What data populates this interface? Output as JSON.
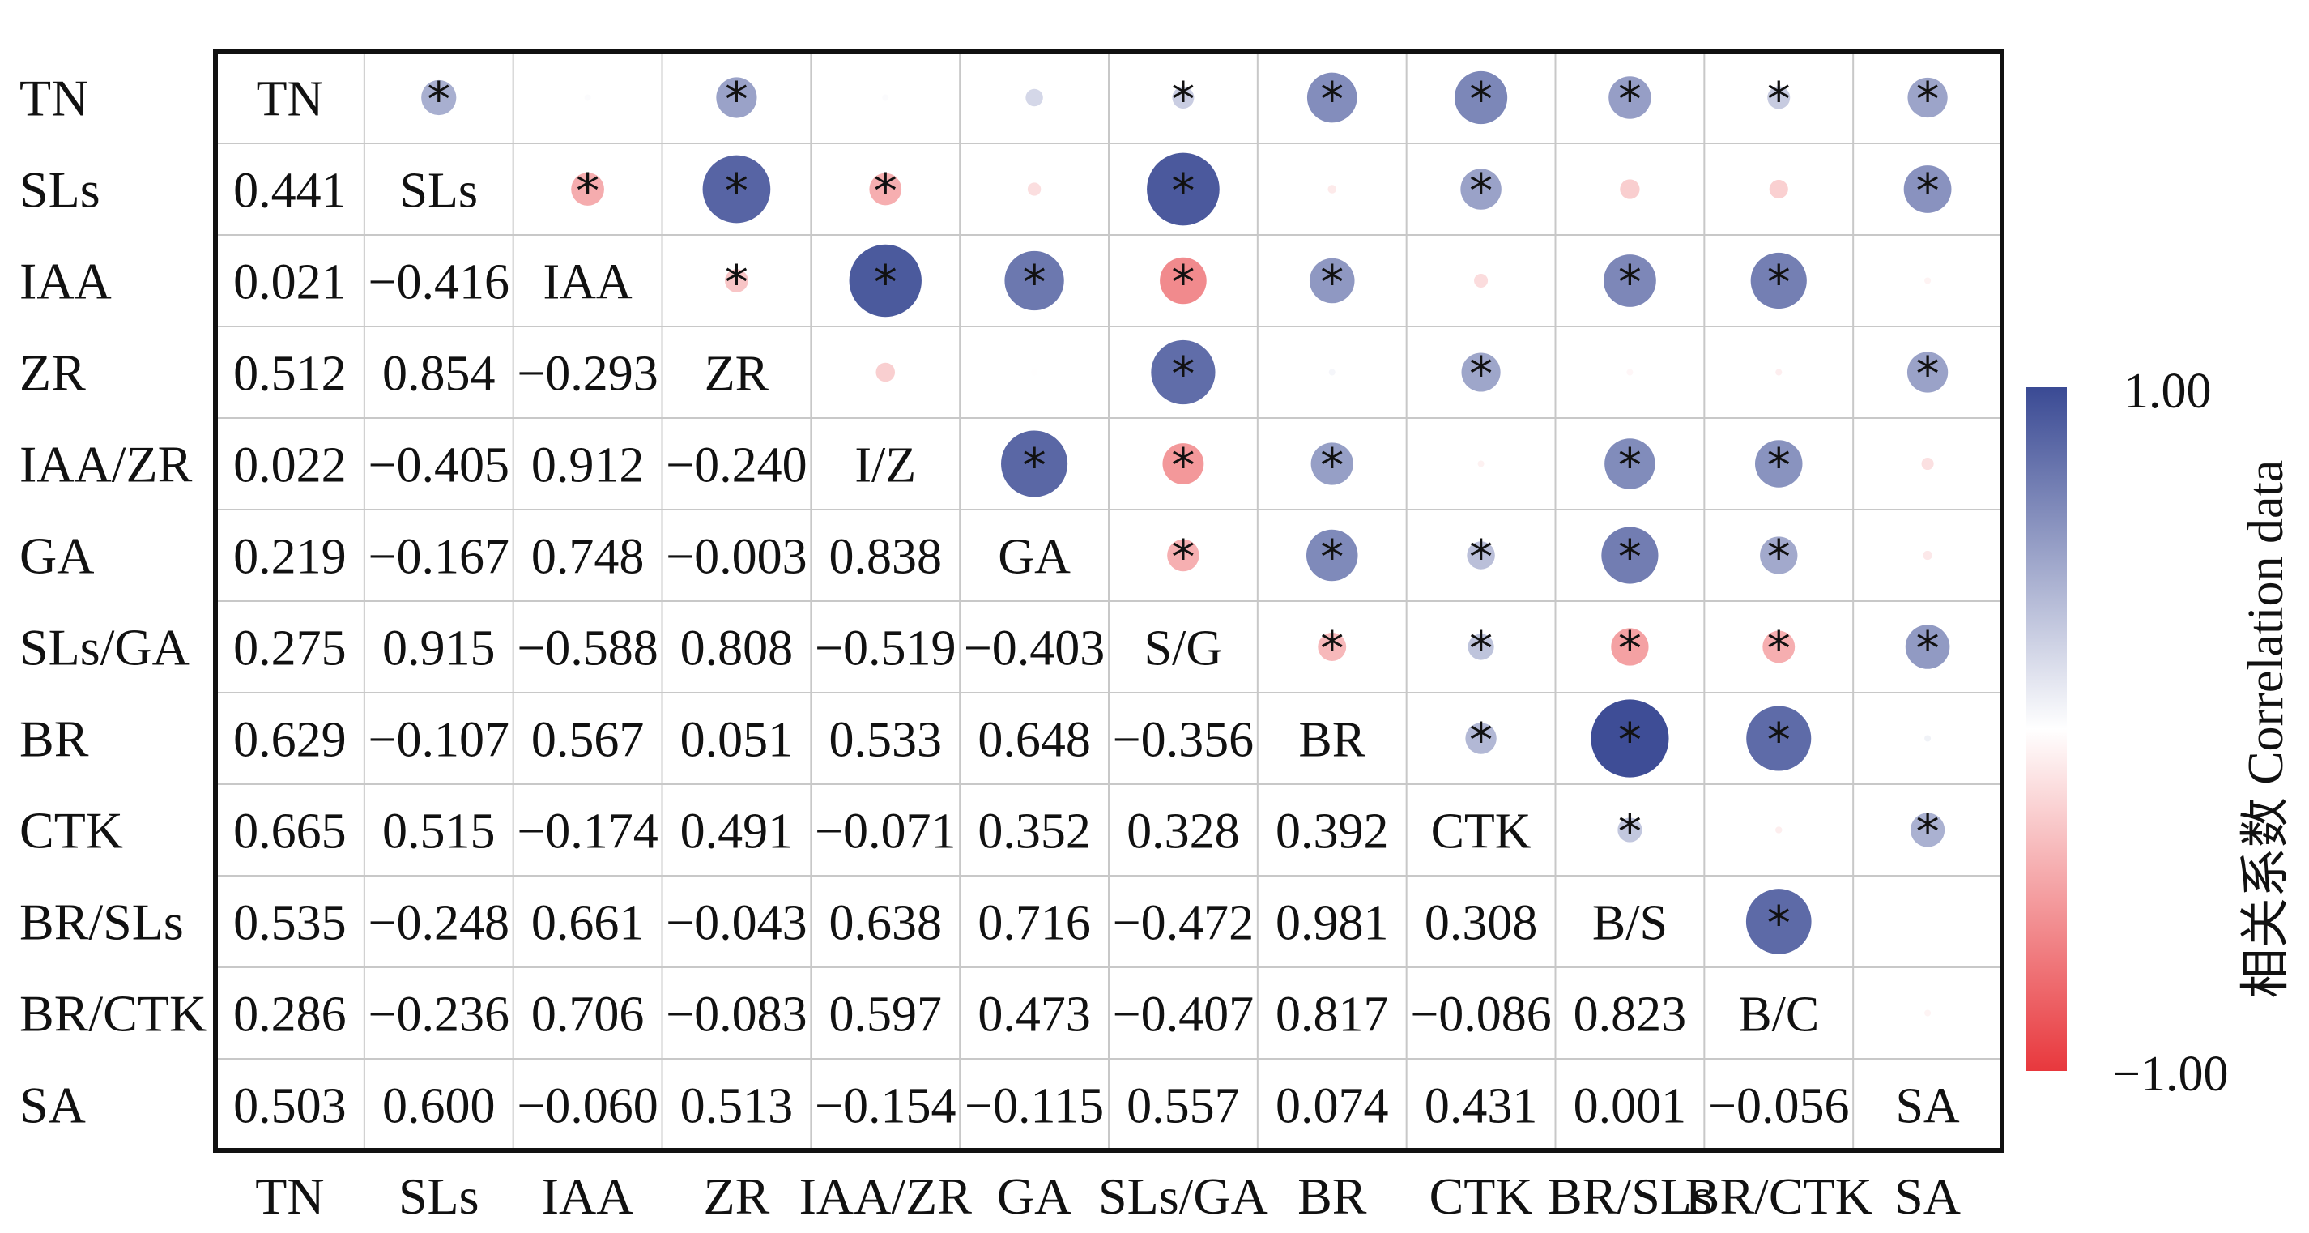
{
  "chart_data": {
    "type": "heatmap",
    "variables": [
      "TN",
      "SLs",
      "IAA",
      "ZR",
      "IAA/ZR",
      "GA",
      "SLs/GA",
      "BR",
      "CTK",
      "BR/SLs",
      "BR/CTK",
      "SA"
    ],
    "diagonal_labels": [
      "TN",
      "SLs",
      "IAA",
      "ZR",
      "I/Z",
      "GA",
      "S/G",
      "BR",
      "CTK",
      "B/S",
      "B/C",
      "SA"
    ],
    "lower_triangle_text": [
      [],
      [
        "0.441"
      ],
      [
        "0.021",
        "−0.416"
      ],
      [
        "0.512",
        "0.854",
        "−0.293"
      ],
      [
        "0.022",
        "−0.405",
        "0.912",
        "−0.240"
      ],
      [
        "0.219",
        "−0.167",
        "0.748",
        "−0.003",
        "0.838"
      ],
      [
        "0.275",
        "0.915",
        "−0.588",
        "0.808",
        "−0.519",
        "−0.403"
      ],
      [
        "0.629",
        "−0.107",
        "0.567",
        "0.051",
        "0.533",
        "0.648",
        "−0.356"
      ],
      [
        "0.665",
        "0.515",
        "−0.174",
        "0.491",
        "−0.071",
        "0.352",
        "0.328",
        "0.392"
      ],
      [
        "0.535",
        "−0.248",
        "0.661",
        "−0.043",
        "0.638",
        "0.716",
        "−0.472",
        "0.981",
        "0.308"
      ],
      [
        "0.286",
        "−0.236",
        "0.706",
        "−0.083",
        "0.597",
        "0.473",
        "−0.407",
        "0.817",
        "−0.086",
        "0.823"
      ],
      [
        "0.503",
        "0.600",
        "−0.060",
        "0.513",
        "−0.154",
        "−0.115",
        "0.557",
        "0.074",
        "0.431",
        "0.001",
        "−0.056"
      ]
    ],
    "correlation_values": [
      [
        1,
        0.441,
        0.021,
        0.512,
        0.022,
        0.219,
        0.275,
        0.629,
        0.665,
        0.535,
        0.286,
        0.503
      ],
      [
        0.441,
        1,
        -0.416,
        0.854,
        -0.405,
        -0.167,
        0.915,
        -0.107,
        0.515,
        -0.248,
        -0.236,
        0.6
      ],
      [
        0.021,
        -0.416,
        1,
        -0.293,
        0.912,
        0.748,
        -0.588,
        0.567,
        -0.174,
        0.661,
        0.706,
        -0.06
      ],
      [
        0.512,
        0.854,
        -0.293,
        1,
        -0.24,
        -0.003,
        0.808,
        0.051,
        0.491,
        -0.043,
        -0.083,
        0.513
      ],
      [
        0.022,
        -0.405,
        0.912,
        -0.24,
        1,
        0.838,
        -0.519,
        0.533,
        -0.071,
        0.638,
        0.597,
        -0.154
      ],
      [
        0.219,
        -0.167,
        0.748,
        -0.003,
        0.838,
        1,
        -0.403,
        0.648,
        0.352,
        0.716,
        0.473,
        -0.115
      ],
      [
        0.275,
        0.915,
        -0.588,
        0.808,
        -0.519,
        -0.403,
        1,
        -0.356,
        0.328,
        -0.472,
        -0.407,
        0.557
      ],
      [
        0.629,
        -0.107,
        0.567,
        0.051,
        0.533,
        0.648,
        -0.356,
        1,
        0.392,
        0.981,
        0.817,
        0.074
      ],
      [
        0.665,
        0.515,
        -0.174,
        0.491,
        -0.071,
        0.352,
        0.328,
        0.392,
        1,
        0.308,
        -0.086,
        0.431
      ],
      [
        0.535,
        -0.248,
        0.661,
        -0.043,
        0.638,
        0.716,
        -0.472,
        0.981,
        0.308,
        1,
        0.823,
        0.001
      ],
      [
        0.286,
        -0.236,
        0.706,
        -0.083,
        0.597,
        0.473,
        -0.407,
        0.817,
        -0.086,
        0.823,
        1,
        -0.056
      ],
      [
        0.503,
        0.6,
        -0.06,
        0.513,
        -0.154,
        -0.115,
        0.557,
        0.074,
        0.431,
        0.001,
        -0.056,
        1
      ]
    ],
    "significance_marks": [
      [
        0,
        1
      ],
      [
        0,
        3
      ],
      [
        0,
        6
      ],
      [
        0,
        7
      ],
      [
        0,
        8
      ],
      [
        0,
        9
      ],
      [
        0,
        10
      ],
      [
        0,
        11
      ],
      [
        1,
        2
      ],
      [
        1,
        3
      ],
      [
        1,
        4
      ],
      [
        1,
        6
      ],
      [
        1,
        8
      ],
      [
        1,
        11
      ],
      [
        2,
        3
      ],
      [
        2,
        4
      ],
      [
        2,
        5
      ],
      [
        2,
        6
      ],
      [
        2,
        7
      ],
      [
        2,
        9
      ],
      [
        2,
        10
      ],
      [
        3,
        6
      ],
      [
        3,
        8
      ],
      [
        3,
        11
      ],
      [
        4,
        5
      ],
      [
        4,
        6
      ],
      [
        4,
        7
      ],
      [
        4,
        9
      ],
      [
        4,
        10
      ],
      [
        5,
        6
      ],
      [
        5,
        7
      ],
      [
        5,
        8
      ],
      [
        5,
        9
      ],
      [
        5,
        10
      ],
      [
        6,
        7
      ],
      [
        6,
        8
      ],
      [
        6,
        9
      ],
      [
        6,
        10
      ],
      [
        6,
        11
      ],
      [
        7,
        8
      ],
      [
        7,
        9
      ],
      [
        7,
        10
      ],
      [
        8,
        9
      ],
      [
        8,
        11
      ],
      [
        9,
        10
      ]
    ],
    "significance_symbol": "*",
    "colorbar": {
      "title": "相关系数 Correlation data",
      "max_label": "1.00",
      "min_label": "−1.00",
      "range": [
        -1,
        1
      ],
      "colors": {
        "negative": "#e8383d",
        "zero": "#ffffff",
        "positive": "#3a4a94"
      }
    },
    "grid": true
  }
}
